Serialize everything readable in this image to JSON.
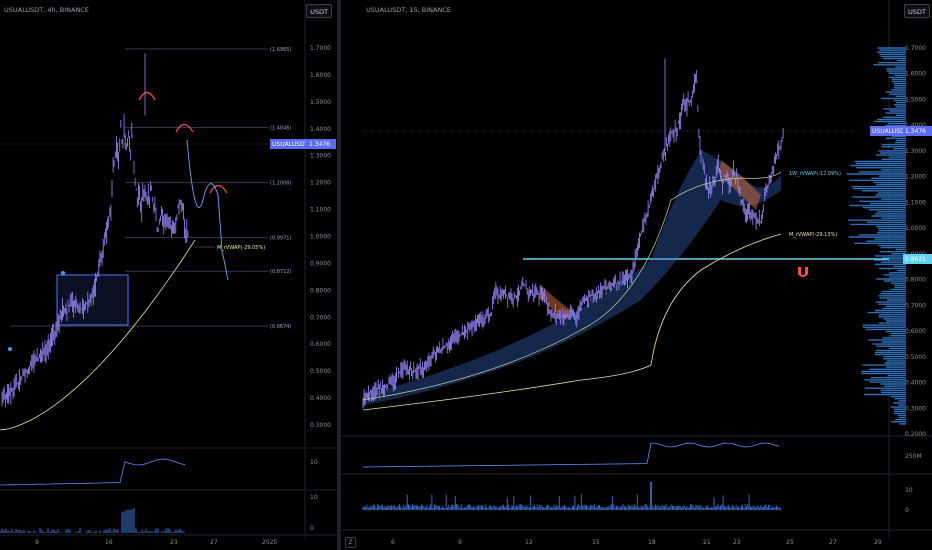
{
  "left": {
    "symbol": "USUALUSDT, 4h, BINANCE",
    "currency": "USDT",
    "price_ticks": [
      "1.7000",
      "1.6000",
      "1.5000",
      "1.4000",
      "1.3000",
      "1.2000",
      "1.1000",
      "1.0000",
      "0.9000",
      "0.8000",
      "0.7000",
      "0.6000",
      "0.5000",
      "0.4000",
      "0.3000"
    ],
    "fib_labels": [
      "(1.6965)",
      "(1.4046)",
      "(1.2008)",
      "(0.9971)",
      "(0.8712)",
      "(0.6674)"
    ],
    "vwap_label": "M_rVWAP(-29.05%)",
    "price_tag": {
      "symbol": "USUALUSDT",
      "price": "1.3476"
    },
    "ind1_tick": "10",
    "ind2_ticks": [
      "10",
      "0"
    ],
    "date_ticks": [
      "9",
      "16",
      "23",
      "27",
      "2025"
    ]
  },
  "right": {
    "symbol": "USUALUSDT, 15, BINANCE",
    "currency": "USDT",
    "price_ticks": [
      "1.7000",
      "1.6000",
      "1.5000",
      "1.4000",
      "1.3000",
      "1.2000",
      "1.1000",
      "1.0000",
      "0.9000",
      "0.8000",
      "0.7000",
      "0.6000",
      "0.5000",
      "0.4000",
      "0.3000",
      "0.2000"
    ],
    "vwap_labels": [
      "1W_rVWAP(-12.09%)",
      "M_rVWAP(-29.13%)"
    ],
    "price_tag": {
      "symbol": "USUALUSDT",
      "price": "1.3476"
    },
    "level_tag": "0.8621",
    "ind1_tick": "250M",
    "ind2_ticks": [
      "10",
      "0"
    ],
    "date_ticks": [
      "6",
      "9",
      "12",
      "15",
      "18",
      "21",
      "23",
      "25",
      "27",
      "29"
    ],
    "magnet_icon": "magnet-icon"
  },
  "colors": {
    "candle": "#9b8cff",
    "ribbon": "#3b6fd8",
    "vwap": "#f3e7a1",
    "cyan": "#62d2f0",
    "tag": "#5b6cf0",
    "red": "#ff4d4d"
  }
}
